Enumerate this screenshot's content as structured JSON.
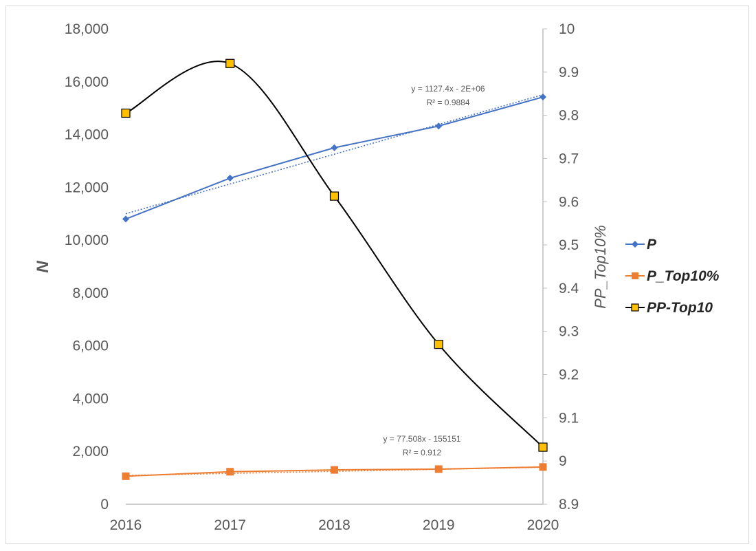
{
  "chart_data": {
    "type": "line",
    "x": [
      2016,
      2017,
      2018,
      2019,
      2020
    ],
    "x_tick_labels": [
      "2016",
      "2017",
      "2018",
      "2019",
      "2020"
    ],
    "xlim": [
      2016,
      2020
    ],
    "ylabel": "N",
    "ylim": [
      0,
      18000
    ],
    "y_tick_labels": [
      "0",
      "2,000",
      "4,000",
      "6,000",
      "8,000",
      "10,000",
      "12,000",
      "14,000",
      "16,000",
      "18,000"
    ],
    "y2label": "PP_Top10%",
    "y2lim": [
      8.9,
      10
    ],
    "y2_tick_labels": [
      "8.9",
      "9",
      "9.1",
      "9.2",
      "9.3",
      "9.4",
      "9.5",
      "9.6",
      "9.7",
      "9.8",
      "9.9",
      "10"
    ],
    "grid": false,
    "legend_position": "right",
    "series": [
      {
        "name": "P",
        "axis": "left",
        "color": "#4472c4",
        "marker": "diamond",
        "values": [
          10800,
          12350,
          13500,
          14320,
          15420
        ]
      },
      {
        "name": "P_Top10%",
        "axis": "left",
        "color": "#ed7d31",
        "marker": "square",
        "values": [
          1060,
          1230,
          1300,
          1330,
          1410
        ]
      },
      {
        "name": "PP-Top10",
        "axis": "right",
        "color": "#000000",
        "marker_fill": "#ffc000",
        "marker": "square",
        "smooth": true,
        "values": [
          9.805,
          9.92,
          9.613,
          9.27,
          9.032
        ]
      }
    ],
    "trendlines": [
      {
        "series": "P",
        "equation": "y = 1127.4x - 2E+06",
        "r2": "R² = 0.9884",
        "start": 11000,
        "end": 15510
      },
      {
        "series": "P_Top10%",
        "equation": "y = 77.508x - 155151",
        "r2": "R² = 0.912",
        "start": 1090,
        "end": 1400
      }
    ]
  }
}
